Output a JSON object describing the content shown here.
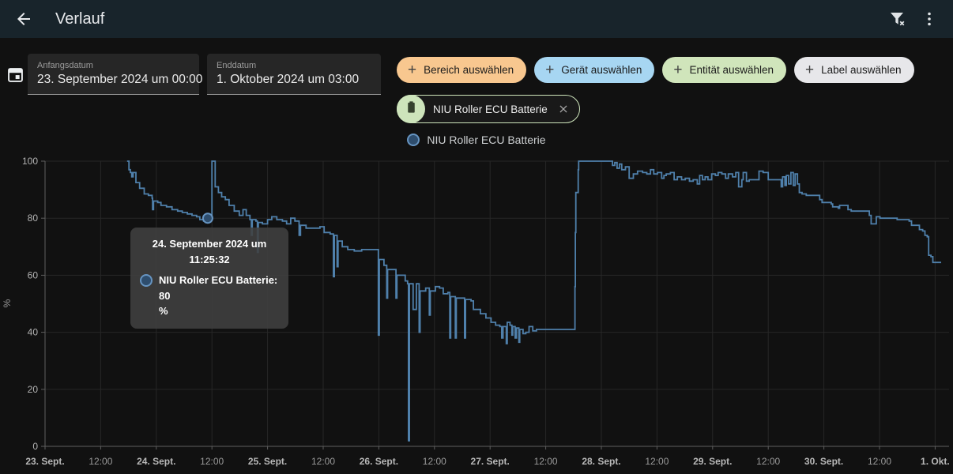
{
  "header": {
    "title": "Verlauf"
  },
  "datetime": {
    "start": {
      "label": "Anfangsdatum",
      "value": "23. September 2024 um 00:00"
    },
    "end": {
      "label": "Enddatum",
      "value": "1. Oktober 2024 um 03:00"
    }
  },
  "filter_chips": [
    {
      "label": "Bereich auswählen",
      "bg": "#f8c78f"
    },
    {
      "label": "Gerät auswählen",
      "bg": "#a7d6f2"
    },
    {
      "label": "Entität auswählen",
      "bg": "#d0e5bb"
    },
    {
      "label": "Label auswählen",
      "bg": "#e7e7ea"
    }
  ],
  "selected_entity": {
    "label": "NIU Roller ECU Batterie"
  },
  "legend": {
    "label": "NIU Roller ECU Batterie"
  },
  "tooltip": {
    "date_line1": "24. September 2024 um",
    "date_line2": "11:25:32",
    "value_line1": "NIU Roller ECU Batterie: 80",
    "value_line2": "%"
  },
  "colors": {
    "page_bg": "#111111",
    "header_bg": "#18242b",
    "line": "#4f80ab",
    "grid": "#272727",
    "axis": "#5e5e5e",
    "marker_fill": "#2e4d6d",
    "marker_ring": "#6694c1"
  },
  "chart_data": {
    "type": "line",
    "step": "after",
    "title": "",
    "xlabel": "",
    "ylabel": "%",
    "x_unit": "hours since 23. September 2024 00:00",
    "xlim": [
      0,
      195
    ],
    "ylim": [
      0,
      100
    ],
    "grid": true,
    "legend_position": "top-center",
    "y_ticks": [
      0,
      20,
      40,
      60,
      80,
      100
    ],
    "x_ticks": [
      {
        "h": 0,
        "label": "23. Sept.",
        "bold": true
      },
      {
        "h": 12,
        "label": "12:00"
      },
      {
        "h": 24,
        "label": "24. Sept.",
        "bold": true
      },
      {
        "h": 36,
        "label": "12:00"
      },
      {
        "h": 48,
        "label": "25. Sept.",
        "bold": true
      },
      {
        "h": 60,
        "label": "12:00"
      },
      {
        "h": 72,
        "label": "26. Sept.",
        "bold": true
      },
      {
        "h": 84,
        "label": "12:00"
      },
      {
        "h": 96,
        "label": "27. Sept.",
        "bold": true
      },
      {
        "h": 108,
        "label": "12:00"
      },
      {
        "h": 120,
        "label": "28. Sept.",
        "bold": true
      },
      {
        "h": 132,
        "label": "12:00"
      },
      {
        "h": 144,
        "label": "29. Sept.",
        "bold": true
      },
      {
        "h": 156,
        "label": "12:00"
      },
      {
        "h": 168,
        "label": "30. Sept.",
        "bold": true
      },
      {
        "h": 180,
        "label": "12:00"
      },
      {
        "h": 192,
        "label": "1. Okt.",
        "bold": true
      }
    ],
    "tooltip_point": {
      "h": 35.1,
      "value": 80
    },
    "series": [
      {
        "name": "NIU Roller ECU Batterie",
        "color": "#4f80ab",
        "unit": "%",
        "points": [
          [
            17.7,
            100
          ],
          [
            18.1,
            97
          ],
          [
            18.4,
            96
          ],
          [
            18.7,
            94.5
          ],
          [
            19.0,
            96
          ],
          [
            19.6,
            92.5
          ],
          [
            20.4,
            90.5
          ],
          [
            21.4,
            88.5
          ],
          [
            22.3,
            88
          ],
          [
            23.1,
            87
          ],
          [
            23.2,
            83
          ],
          [
            23.4,
            86
          ],
          [
            24.3,
            85.5
          ],
          [
            25.0,
            84.5
          ],
          [
            26.2,
            84
          ],
          [
            27.4,
            83
          ],
          [
            28.6,
            82.5
          ],
          [
            29.6,
            82
          ],
          [
            30.7,
            81.5
          ],
          [
            31.7,
            81
          ],
          [
            32.7,
            80.5
          ],
          [
            33.4,
            79.5
          ],
          [
            34.2,
            79
          ],
          [
            34.6,
            78.5
          ],
          [
            35.0,
            80
          ],
          [
            36.0,
            100
          ],
          [
            36.7,
            91
          ],
          [
            37.4,
            89
          ],
          [
            38.1,
            87.5
          ],
          [
            38.9,
            86.5
          ],
          [
            39.7,
            84.5
          ],
          [
            40.8,
            82.5
          ],
          [
            41.9,
            81
          ],
          [
            42.7,
            83
          ],
          [
            43.4,
            81
          ],
          [
            44.2,
            79.5
          ],
          [
            44.5,
            74
          ],
          [
            44.7,
            79.5
          ],
          [
            45.5,
            79
          ],
          [
            45.8,
            68
          ],
          [
            46.0,
            78.5
          ],
          [
            46.9,
            78
          ],
          [
            48.0,
            79.5
          ],
          [
            48.9,
            80.5
          ],
          [
            50.0,
            79.5
          ],
          [
            51.2,
            79
          ],
          [
            52.1,
            78
          ],
          [
            53.0,
            80
          ],
          [
            53.9,
            79
          ],
          [
            54.8,
            74
          ],
          [
            55.1,
            77.5
          ],
          [
            56.3,
            76.5
          ],
          [
            58.0,
            76.5
          ],
          [
            59.3,
            77
          ],
          [
            60.2,
            75
          ],
          [
            61.5,
            74.5
          ],
          [
            62.2,
            59.5
          ],
          [
            62.4,
            74
          ],
          [
            63.0,
            63
          ],
          [
            63.2,
            72
          ],
          [
            64.1,
            70
          ],
          [
            65.3,
            69
          ],
          [
            66.7,
            68.5
          ],
          [
            68.3,
            69
          ],
          [
            71.7,
            69
          ],
          [
            71.9,
            39
          ],
          [
            72.1,
            65.5
          ],
          [
            73.1,
            63.5
          ],
          [
            73.7,
            52
          ],
          [
            73.9,
            62
          ],
          [
            75.3,
            62
          ],
          [
            75.7,
            52
          ],
          [
            75.9,
            60
          ],
          [
            77.7,
            58
          ],
          [
            78.2,
            57
          ],
          [
            78.4,
            2
          ],
          [
            78.6,
            57
          ],
          [
            79.4,
            48
          ],
          [
            80.1,
            57
          ],
          [
            80.7,
            40
          ],
          [
            80.9,
            54.5
          ],
          [
            82.1,
            55.5
          ],
          [
            82.9,
            46
          ],
          [
            83.1,
            54.5
          ],
          [
            84.2,
            56
          ],
          [
            85.1,
            55.5
          ],
          [
            85.9,
            53.5
          ],
          [
            86.9,
            54
          ],
          [
            87.3,
            38
          ],
          [
            87.5,
            52.5
          ],
          [
            88.5,
            38
          ],
          [
            88.7,
            52
          ],
          [
            90.2,
            52
          ],
          [
            90.5,
            38
          ],
          [
            90.7,
            51.5
          ],
          [
            91.9,
            51
          ],
          [
            92.4,
            48
          ],
          [
            93.9,
            46.5
          ],
          [
            95.1,
            45
          ],
          [
            96.2,
            43.5
          ],
          [
            97.2,
            42.5
          ],
          [
            98.1,
            42
          ],
          [
            98.5,
            38
          ],
          [
            98.8,
            42
          ],
          [
            99.5,
            36
          ],
          [
            99.7,
            43.5
          ],
          [
            100.3,
            42.5
          ],
          [
            100.7,
            39
          ],
          [
            100.9,
            42
          ],
          [
            101.4,
            38
          ],
          [
            101.7,
            41.5
          ],
          [
            102.2,
            36.5
          ],
          [
            102.4,
            41
          ],
          [
            103.1,
            39.5
          ],
          [
            103.7,
            40
          ],
          [
            104.4,
            42
          ],
          [
            105.2,
            40.5
          ],
          [
            106.0,
            41
          ],
          [
            114.2,
            41
          ],
          [
            114.3,
            56
          ],
          [
            114.4,
            75
          ],
          [
            114.5,
            89
          ],
          [
            114.8,
            89
          ],
          [
            115.0,
            97
          ],
          [
            115.1,
            100
          ],
          [
            122.1,
            100
          ],
          [
            122.4,
            98.5
          ],
          [
            122.9,
            99.5
          ],
          [
            123.4,
            97.5
          ],
          [
            123.9,
            99
          ],
          [
            124.4,
            97
          ],
          [
            125.2,
            98
          ],
          [
            126.0,
            94
          ],
          [
            126.9,
            95.5
          ],
          [
            127.8,
            96.5
          ],
          [
            128.9,
            96
          ],
          [
            129.8,
            95.5
          ],
          [
            130.6,
            97
          ],
          [
            131.3,
            95.5
          ],
          [
            132.1,
            96
          ],
          [
            133.0,
            94
          ],
          [
            133.5,
            95
          ],
          [
            134.0,
            95.5
          ],
          [
            134.9,
            96
          ],
          [
            135.7,
            93.5
          ],
          [
            136.4,
            94.5
          ],
          [
            137.3,
            93.5
          ],
          [
            138.1,
            94
          ],
          [
            139.0,
            93
          ],
          [
            139.8,
            93.5
          ],
          [
            140.7,
            92
          ],
          [
            141.2,
            95
          ],
          [
            141.8,
            93.5
          ],
          [
            142.4,
            94.5
          ],
          [
            143.0,
            93.5
          ],
          [
            143.8,
            95.5
          ],
          [
            144.6,
            95
          ],
          [
            145.2,
            96
          ],
          [
            146.0,
            95.5
          ],
          [
            146.8,
            94
          ],
          [
            147.4,
            95.5
          ],
          [
            148.3,
            94.5
          ],
          [
            149.0,
            96
          ],
          [
            149.6,
            91
          ],
          [
            150.3,
            93.5
          ],
          [
            150.6,
            96
          ],
          [
            151.3,
            93
          ],
          [
            151.9,
            93.5
          ],
          [
            153.1,
            93.5
          ],
          [
            154.0,
            96.5
          ],
          [
            154.9,
            96
          ],
          [
            156.0,
            93.5
          ],
          [
            158.0,
            93.5
          ],
          [
            158.8,
            91
          ],
          [
            159.1,
            94.5
          ],
          [
            159.6,
            91.5
          ],
          [
            159.9,
            95
          ],
          [
            160.4,
            92
          ],
          [
            160.9,
            96
          ],
          [
            161.4,
            91.5
          ],
          [
            161.8,
            95.5
          ],
          [
            162.3,
            92
          ],
          [
            162.7,
            89
          ],
          [
            163.3,
            88.5
          ],
          [
            164.2,
            88
          ],
          [
            166.4,
            88
          ],
          [
            167.1,
            86.5
          ],
          [
            167.6,
            85.5
          ],
          [
            169.6,
            85
          ],
          [
            169.9,
            84
          ],
          [
            171.1,
            83.5
          ],
          [
            171.4,
            84.5
          ],
          [
            173.2,
            83
          ],
          [
            173.9,
            82.5
          ],
          [
            176.1,
            82.5
          ],
          [
            177.8,
            81
          ],
          [
            178.2,
            78
          ],
          [
            179.0,
            78
          ],
          [
            179.3,
            80.5
          ],
          [
            180.1,
            80
          ],
          [
            183.8,
            79.5
          ],
          [
            186.4,
            79
          ],
          [
            186.9,
            77.5
          ],
          [
            188.6,
            76
          ],
          [
            189.3,
            75.5
          ],
          [
            189.8,
            74
          ],
          [
            190.3,
            73.5
          ],
          [
            190.6,
            67
          ],
          [
            191.1,
            66.5
          ],
          [
            191.5,
            64.5
          ],
          [
            192.0,
            64.5
          ],
          [
            193.3,
            64.5
          ]
        ]
      }
    ]
  }
}
